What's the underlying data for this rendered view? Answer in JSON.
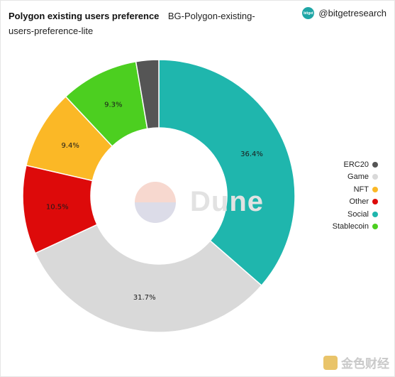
{
  "header": {
    "title": "Polygon existing users preference",
    "subtitle": "BG-Polygon-existing-users-preference-lite"
  },
  "brand": {
    "handle": "@bitgetresearch",
    "avatar_text": "bitget"
  },
  "watermark": {
    "text": "Dune"
  },
  "footer": {
    "text": "金色财经"
  },
  "chart_data": {
    "type": "pie",
    "donut": true,
    "categories": [
      "ERC20",
      "Game",
      "NFT",
      "Other",
      "Social",
      "Stablecoin"
    ],
    "values": [
      2.7,
      31.7,
      9.4,
      10.5,
      36.4,
      9.3
    ],
    "labels": [
      "",
      "31.7%",
      "9.4%",
      "10.5%",
      "36.4%",
      "9.3%"
    ],
    "colors": [
      "#555555",
      "#d9d9d9",
      "#fbb826",
      "#dd0a0a",
      "#1fb6ad",
      "#4ccf20"
    ],
    "draw_order": [
      "Social",
      "Game",
      "Other",
      "NFT",
      "Stablecoin",
      "ERC20"
    ],
    "legend_position": "right"
  }
}
